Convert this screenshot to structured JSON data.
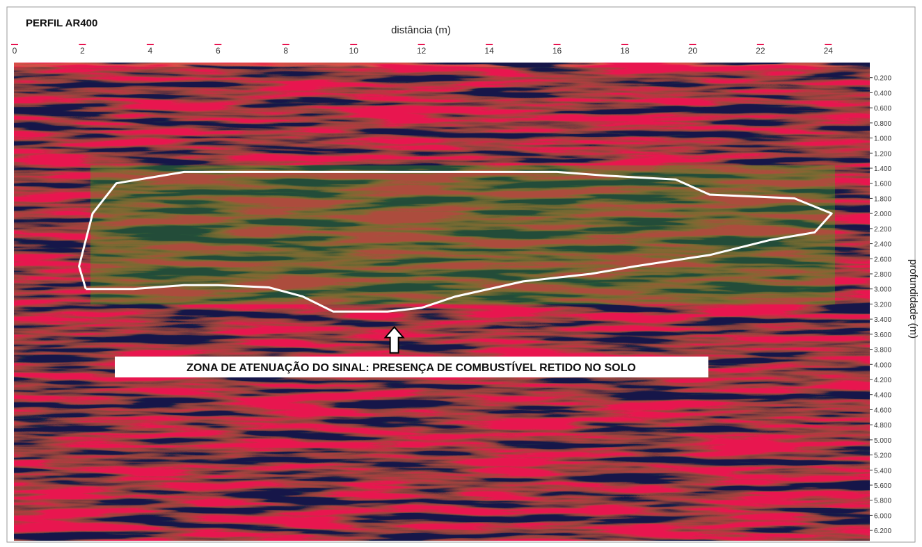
{
  "chart_data": {
    "type": "heatmap",
    "title": "PERFIL AR400",
    "xlabel": "distância (m)",
    "ylabel": "profundidade (m)",
    "xlim": [
      0,
      25
    ],
    "ylim": [
      0,
      6.3
    ],
    "x_ticks": [
      0,
      2,
      4,
      6,
      8,
      10,
      12,
      14,
      16,
      18,
      20,
      22,
      24
    ],
    "x_tick_labels": [
      "0",
      "2",
      "4",
      "6",
      "8",
      "10",
      "12",
      "14",
      "16",
      "18",
      "20",
      "22",
      "24"
    ],
    "y_ticks": [
      0.2,
      0.4,
      0.6,
      0.8,
      1.0,
      1.2,
      1.4,
      1.6,
      1.8,
      2.0,
      2.2,
      2.4,
      2.6,
      2.8,
      3.0,
      3.2,
      3.4,
      3.6,
      3.8,
      4.0,
      4.2,
      4.4,
      4.6,
      4.8,
      5.0,
      5.2,
      5.4,
      5.6,
      5.8,
      6.0,
      6.2
    ],
    "y_tick_labels": [
      "0.200",
      "0.400",
      "0.600",
      "0.800",
      "1.000",
      "1.200",
      "1.400",
      "1.600",
      "1.800",
      "2.000",
      "2.200",
      "2.400",
      "2.600",
      "2.800",
      "3.000",
      "3.200",
      "3.400",
      "3.600",
      "3.800",
      "4.000",
      "4.200",
      "4.400",
      "4.600",
      "4.800",
      "5.000",
      "5.200",
      "5.400",
      "5.600",
      "5.800",
      "6.000",
      "6.200"
    ],
    "colors": {
      "positive": "#e8134f",
      "negative": "#14194a",
      "neutral": "#3cb21c",
      "highlight": "#e4e63c",
      "outline": "#ffffff"
    },
    "annotation": {
      "text": "ZONA DE ATENUAÇÃO DO SINAL: PRESENÇA DE COMBUSTÍVEL RETIDO NO SOLO",
      "arrow_target": [
        11.2,
        3.45
      ],
      "zone_outline": [
        [
          2.1,
          3.0
        ],
        [
          1.9,
          2.7
        ],
        [
          2.3,
          2.0
        ],
        [
          3.0,
          1.6
        ],
        [
          5.0,
          1.45
        ],
        [
          7.0,
          1.45
        ],
        [
          9.0,
          1.45
        ],
        [
          12.0,
          1.45
        ],
        [
          16.0,
          1.45
        ],
        [
          17.5,
          1.5
        ],
        [
          19.5,
          1.55
        ],
        [
          20.5,
          1.75
        ],
        [
          23.0,
          1.8
        ],
        [
          24.1,
          2.0
        ],
        [
          23.6,
          2.25
        ],
        [
          22.3,
          2.35
        ],
        [
          20.5,
          2.55
        ],
        [
          18.3,
          2.7
        ],
        [
          17.0,
          2.8
        ],
        [
          15.0,
          2.9
        ],
        [
          13.0,
          3.1
        ],
        [
          12.0,
          3.25
        ],
        [
          11.0,
          3.3
        ],
        [
          9.4,
          3.3
        ],
        [
          8.5,
          3.1
        ],
        [
          7.5,
          2.98
        ],
        [
          6.0,
          2.95
        ],
        [
          5.0,
          2.95
        ],
        [
          3.5,
          3.0
        ],
        [
          2.1,
          3.0
        ]
      ]
    }
  }
}
